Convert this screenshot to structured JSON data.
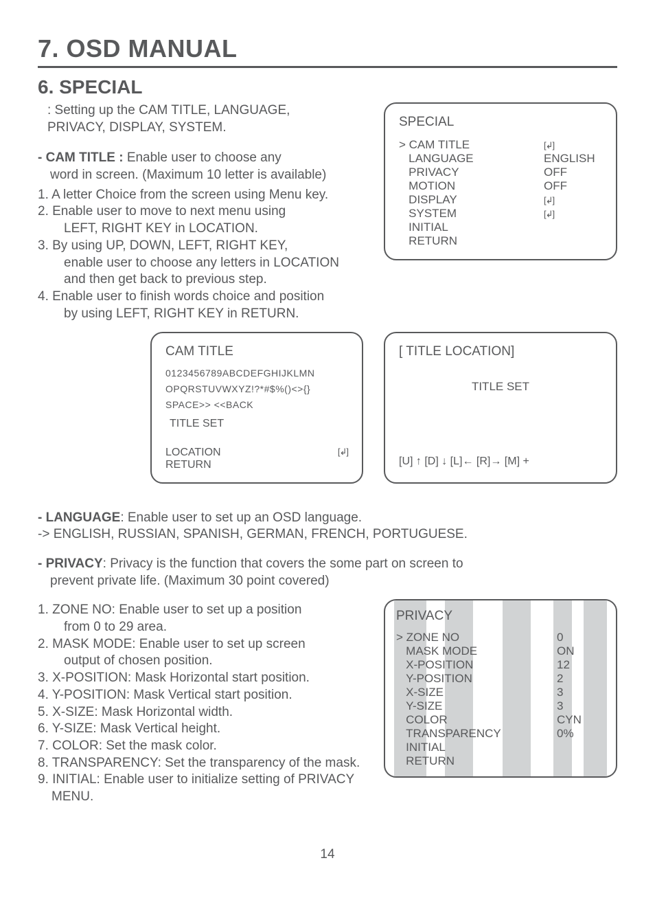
{
  "page": {
    "main_title": "7. OSD MANUAL",
    "section_title": "6. SPECIAL",
    "page_number": "14"
  },
  "intro": {
    "line1": ": Setting up the CAM TITLE, LANGUAGE,",
    "line2": "PRIVACY, DISPLAY, SYSTEM."
  },
  "cam_title": {
    "header": "- CAM TITLE : ",
    "desc1": "Enable user to choose any",
    "desc2": "word in screen. (Maximum 10 letter is available)",
    "n1": "1. A letter Choice from the screen using Menu key.",
    "n2a": "2. Enable user to move to next menu using",
    "n2b": "LEFT, RIGHT KEY in LOCATION.",
    "n3a": "3. By using UP, DOWN, LEFT, RIGHT KEY,",
    "n3b": "enable user to choose any letters in LOCATION",
    "n3c": "and then get back to previous step.",
    "n4a": "4. Enable user to finish words choice and position",
    "n4b": "by using LEFT, RIGHT KEY in RETURN."
  },
  "special_box": {
    "title": "SPECIAL",
    "cursor": ">",
    "enter_icon": "[↲]",
    "rows": [
      {
        "label": "CAM TITLE",
        "val": "[↲]"
      },
      {
        "label": "LANGUAGE",
        "val": "ENGLISH"
      },
      {
        "label": "PRIVACY",
        "val": "OFF"
      },
      {
        "label": "MOTION",
        "val": "OFF"
      },
      {
        "label": "DISPLAY",
        "val": "[↲]"
      },
      {
        "label": "SYSTEM",
        "val": "[↲]"
      },
      {
        "label": "INITIAL",
        "val": ""
      },
      {
        "label": "RETURN",
        "val": ""
      }
    ]
  },
  "cam_box": {
    "title": "CAM TITLE",
    "chars1": "0123456789ABCDEFGHIJKLMN",
    "chars2": "OPQRSTUVWXYZ!?*#$%()<>{}",
    "chars3": "SPACE>>   <<BACK",
    "title_set": "TITLE SET",
    "loc": "LOCATION",
    "ret": "RETURN",
    "icon": "[↲]"
  },
  "title_loc_box": {
    "title": "[ TITLE LOCATION]",
    "mid": "TITLE SET",
    "foot": "[U] ↑  [D] ↓  [L]←  [R]→ [M] +"
  },
  "language": {
    "header": "- LANGUAGE",
    "desc": ": Enable user to set up an OSD language.",
    "line2": "-> ENGLISH, RUSSIAN, SPANISH, GERMAN, FRENCH, PORTUGUESE."
  },
  "privacy": {
    "header": "- PRIVACY",
    "desc": ": Privacy is the function that covers the some part on screen to",
    "line2": "prevent private life. (Maximum 30 point covered)",
    "n1a": "1. ZONE NO: Enable user to set up a position",
    "n1b": "from 0 to 29 area.",
    "n2a": "2. MASK MODE:  Enable user to set up screen",
    "n2b": "output of chosen position.",
    "n3": "3. X-POSITION: Mask Horizontal start position.",
    "n4": "4. Y-POSITION: Mask Vertical start position.",
    "n5": "5. X-SIZE: Mask Horizontal width.",
    "n6": "6. Y-SIZE: Mask Vertical height.",
    "n7": "7. COLOR: Set the mask color.",
    "n8": "8. TRANSPARENCY: Set the transparency of the mask.",
    "n9": "9. INITIAL: Enable user to initialize setting of PRIVACY MENU."
  },
  "privacy_box": {
    "title": "PRIVACY",
    "cursor": ">",
    "rows": [
      {
        "label": "ZONE NO",
        "val": "0"
      },
      {
        "label": "MASK MODE",
        "val": "ON"
      },
      {
        "label": "X-POSITION",
        "val": "12"
      },
      {
        "label": "Y-POSITION",
        "val": "2"
      },
      {
        "label": "X-SIZE",
        "val": "3"
      },
      {
        "label": "Y-SIZE",
        "val": "3"
      },
      {
        "label": "COLOR",
        "val": "CYN"
      },
      {
        "label": "TRANSPARENCY",
        "val": "0%"
      },
      {
        "label": "INITIAL",
        "val": ""
      },
      {
        "label": "RETURN",
        "val": ""
      }
    ],
    "bar_color": "#d1d3d4",
    "bars_left_pct": [
      4,
      26,
      51,
      73,
      86
    ],
    "bars_width_pct": [
      14,
      12,
      12,
      8,
      10
    ]
  }
}
